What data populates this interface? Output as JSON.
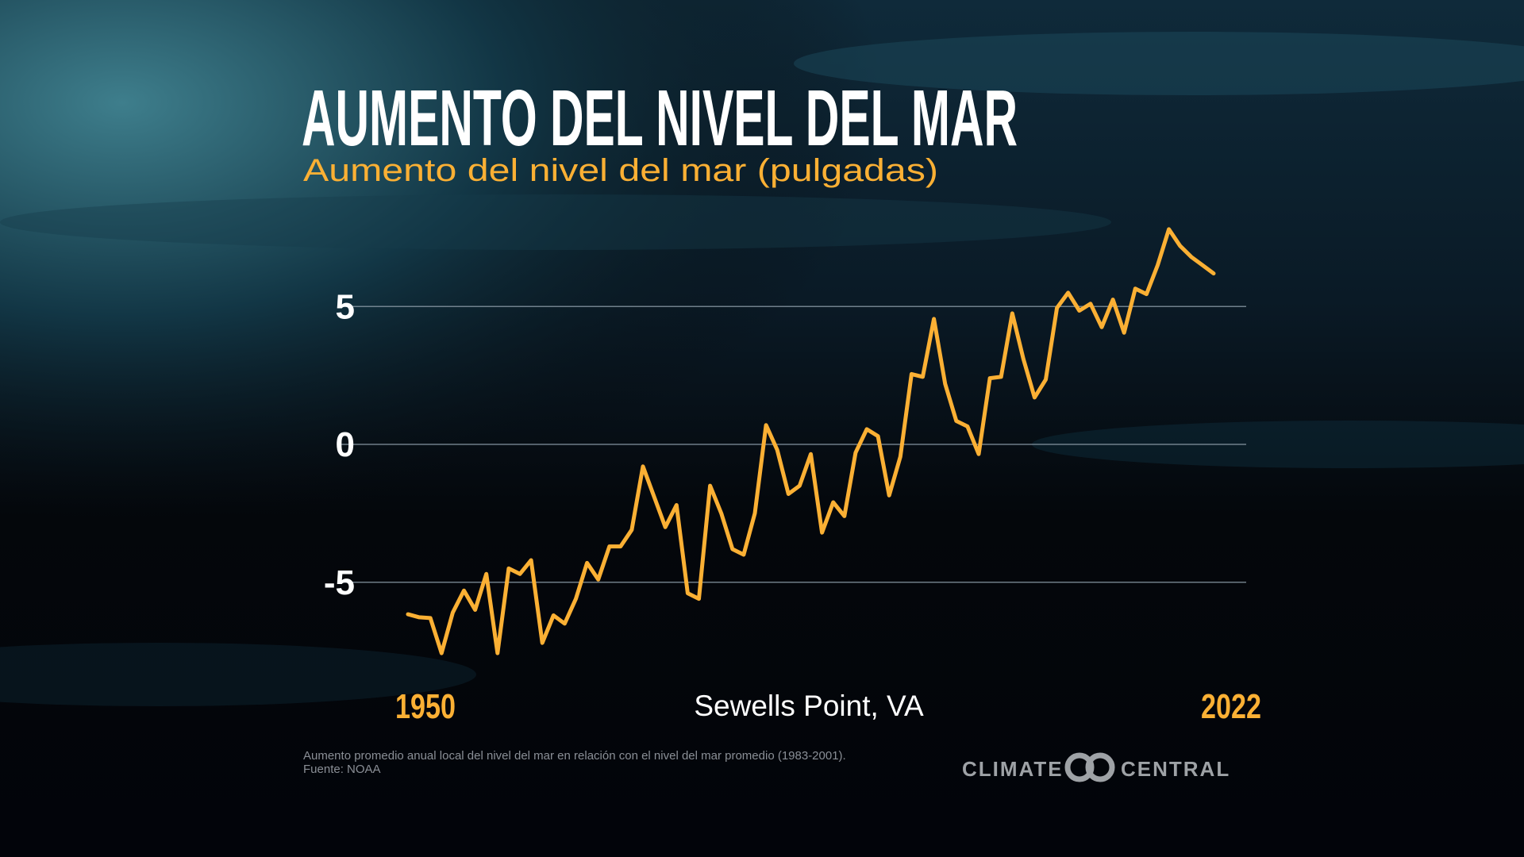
{
  "title": "AUMENTO DEL NIVEL DEL MAR",
  "footnote": [
    "Aumento promedio anual local del nivel del mar en relación con el nivel del mar promedio (1983-2001).",
    "Fuente: NOAA"
  ],
  "logo": [
    "CLIMATE",
    "CENTRAL"
  ],
  "chart_data": {
    "type": "line",
    "title": "Aumento del nivel del mar (pulgadas)",
    "xlabel": "Sewells Point, VA",
    "x": [
      1950,
      1951,
      1952,
      1953,
      1954,
      1955,
      1956,
      1957,
      1958,
      1959,
      1960,
      1961,
      1962,
      1963,
      1964,
      1965,
      1966,
      1967,
      1968,
      1969,
      1970,
      1971,
      1972,
      1973,
      1974,
      1975,
      1976,
      1977,
      1978,
      1979,
      1980,
      1981,
      1982,
      1983,
      1984,
      1985,
      1986,
      1987,
      1988,
      1989,
      1990,
      1991,
      1992,
      1993,
      1994,
      1995,
      1996,
      1997,
      1998,
      1999,
      2000,
      2001,
      2002,
      2003,
      2004,
      2005,
      2006,
      2007,
      2008,
      2009,
      2010,
      2011,
      2012,
      2013,
      2014,
      2015,
      2016,
      2017,
      2018,
      2019,
      2020,
      2021,
      2022
    ],
    "values": [
      -6.16,
      -6.27,
      -6.3,
      -7.57,
      -6.1,
      -5.3,
      -6.0,
      -4.7,
      -7.57,
      -4.5,
      -4.7,
      -4.2,
      -7.2,
      -6.2,
      -6.5,
      -5.6,
      -4.3,
      -4.9,
      -3.7,
      -3.7,
      -3.1,
      -0.8,
      -1.9,
      -3.0,
      -2.2,
      -5.4,
      -5.6,
      -1.5,
      -2.5,
      -3.8,
      -4.0,
      -2.5,
      0.7,
      -0.2,
      -1.8,
      -1.5,
      -0.35,
      -3.2,
      -2.1,
      -2.6,
      -0.3,
      0.55,
      0.3,
      -1.85,
      -0.45,
      2.55,
      2.45,
      4.55,
      2.2,
      0.85,
      0.65,
      -0.35,
      2.4,
      2.45,
      4.75,
      3.1,
      1.7,
      2.35,
      4.95,
      5.5,
      4.85,
      5.1,
      4.25,
      5.25,
      4.05,
      5.65,
      5.45,
      6.5,
      7.8,
      7.2,
      6.8,
      6.5,
      6.2
    ],
    "color": "#fbb034",
    "xlim": [
      1950,
      2022
    ],
    "xticks": [
      1950,
      2022
    ],
    "ylim": [
      -8,
      8
    ],
    "yticks": [
      -5,
      0,
      5
    ],
    "grid": true
  }
}
